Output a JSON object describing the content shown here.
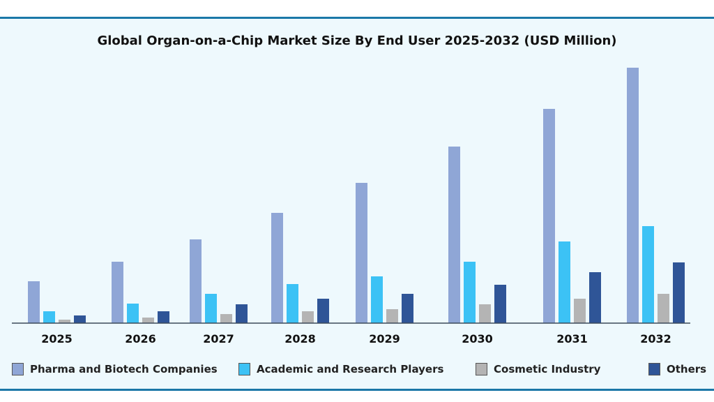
{
  "chart_data": {
    "type": "bar",
    "title": "Global Organ-on-a-Chip Market Size By End User 2025-2032 (USD Million)",
    "xlabel": "",
    "ylabel": "",
    "grid": false,
    "legend_position": "bottom",
    "y_axis_note": "no y-axis printed; values are relative estimates",
    "ylim": [
      0,
      370
    ],
    "categories": [
      "2025",
      "2026",
      "2027",
      "2028",
      "2029",
      "2030",
      "2031",
      "2032"
    ],
    "series": [
      {
        "name": "Pharma and Biotech Companies",
        "color": "#8fa6d6",
        "values": [
          60,
          88,
          120,
          158,
          201,
          253,
          307,
          366
        ]
      },
      {
        "name": "Academic and Research Players",
        "color": "#3cc2f5",
        "values": [
          17,
          28,
          42,
          56,
          67,
          88,
          117,
          139
        ]
      },
      {
        "name": "Cosmetic Industry",
        "color": "#b4b4b4",
        "values": [
          5,
          8,
          13,
          17,
          20,
          27,
          35,
          42
        ]
      },
      {
        "name": "Others",
        "color": "#2f5597",
        "values": [
          11,
          17,
          27,
          35,
          42,
          55,
          73,
          87
        ]
      }
    ]
  }
}
